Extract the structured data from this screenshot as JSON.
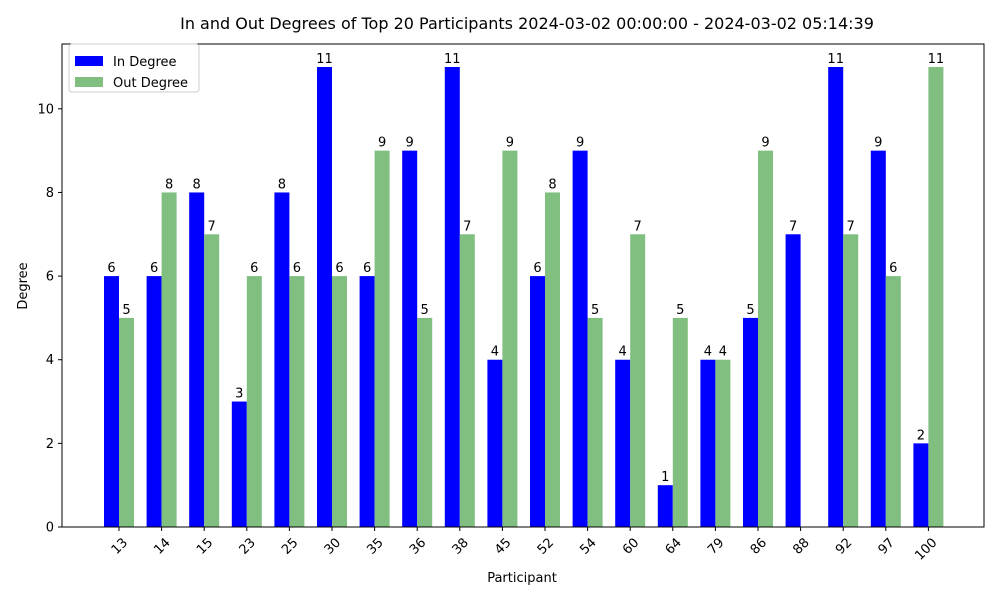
{
  "chart_data": {
    "type": "bar",
    "title": "In and Out Degrees of Top 20 Participants 2024-03-02 00:00:00 - 2024-03-02 05:14:39",
    "xlabel": "Participant",
    "ylabel": "Degree",
    "categories": [
      "13",
      "14",
      "15",
      "23",
      "25",
      "30",
      "35",
      "36",
      "38",
      "45",
      "52",
      "54",
      "60",
      "64",
      "79",
      "86",
      "88",
      "92",
      "97",
      "100"
    ],
    "series": [
      {
        "name": "In Degree",
        "color": "#0000ff",
        "values": [
          6,
          6,
          8,
          3,
          8,
          11,
          6,
          9,
          11,
          4,
          6,
          9,
          4,
          1,
          4,
          5,
          7,
          11,
          9,
          2
        ]
      },
      {
        "name": "Out Degree",
        "color": "#80bf80",
        "values": [
          5,
          8,
          7,
          6,
          6,
          6,
          9,
          5,
          7,
          9,
          8,
          5,
          7,
          5,
          4,
          9,
          0,
          7,
          6,
          11
        ]
      }
    ],
    "ylim": [
      0,
      11.55
    ],
    "yticks": [
      0,
      2,
      4,
      6,
      8,
      10
    ],
    "grid": false,
    "legend_position": "upper-left"
  }
}
